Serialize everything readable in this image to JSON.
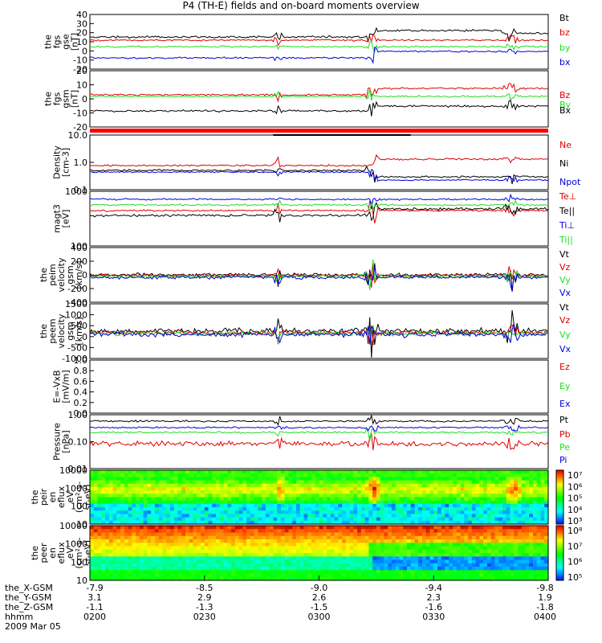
{
  "title": "P4 (TH-E) fields and on-board moments overview",
  "colors": {
    "black": "#000000",
    "red": "#e00000",
    "green": "#22dd22",
    "blue": "#0000dd"
  },
  "chart_data": [
    {
      "type": "line",
      "panel": "fgs_gse",
      "ylabel": [
        "the",
        "fgs",
        "gse",
        "[nT]"
      ],
      "yticks": [
        "40",
        "30",
        "20",
        "10",
        "0",
        "-10",
        "-20"
      ],
      "series": [
        {
          "name": "Bt",
          "color": "black"
        },
        {
          "name": "bz",
          "color": "red"
        },
        {
          "name": "by",
          "color": "green"
        },
        {
          "name": "bx",
          "color": "blue"
        }
      ]
    },
    {
      "type": "line",
      "panel": "fgs_gsm",
      "ylabel": [
        "the",
        "fgs",
        "gsm",
        "[nT]"
      ],
      "yticks": [
        "20",
        "10",
        "0",
        "-10",
        "-20"
      ],
      "series": [
        {
          "name": "Bz",
          "color": "red"
        },
        {
          "name": "By",
          "color": "green"
        },
        {
          "name": "Bx",
          "color": "black"
        }
      ]
    },
    {
      "type": "line",
      "panel": "density",
      "ylabel": [
        "Density",
        "[cm-3]"
      ],
      "yticks": [
        "10.0",
        "1.0",
        "0.1"
      ],
      "series": [
        {
          "name": "Ne",
          "color": "red"
        },
        {
          "name": "Ni",
          "color": "black"
        },
        {
          "name": "Npot",
          "color": "blue"
        }
      ]
    },
    {
      "type": "line",
      "panel": "temperature",
      "ylabel": [
        "magt3",
        "[eV]"
      ],
      "yticks": [
        "1000",
        "100"
      ],
      "series": [
        {
          "name": "Te⊥",
          "color": "red"
        },
        {
          "name": "Te||",
          "color": "black"
        },
        {
          "name": "Ti⊥",
          "color": "blue"
        },
        {
          "name": "Ti||",
          "color": "green"
        }
      ]
    },
    {
      "type": "line",
      "panel": "peim_velocity",
      "ylabel": [
        "the",
        "peim",
        "velocity",
        "gsm",
        "[km/s]"
      ],
      "yticks": [
        "400",
        "200",
        "0",
        "-200",
        "-400"
      ],
      "series": [
        {
          "name": "Vt",
          "color": "black"
        },
        {
          "name": "Vz",
          "color": "red"
        },
        {
          "name": "Vy",
          "color": "green"
        },
        {
          "name": "Vx",
          "color": "blue"
        }
      ]
    },
    {
      "type": "line",
      "panel": "peem_velocity",
      "ylabel": [
        "the",
        "peem",
        "velocity",
        "gsm",
        "[km/s]"
      ],
      "yticks": [
        "1500",
        "1000",
        "500",
        "0",
        "-500",
        "-1000"
      ],
      "series": [
        {
          "name": "Vt",
          "color": "black"
        },
        {
          "name": "Vz",
          "color": "red"
        },
        {
          "name": "Vy",
          "color": "green"
        },
        {
          "name": "Vx",
          "color": "blue"
        }
      ]
    },
    {
      "type": "line",
      "panel": "efield",
      "ylabel": [
        "E=-VxB",
        "[mV/m]"
      ],
      "yticks": [
        "1.0",
        "0.8",
        "0.6",
        "0.4",
        "0.2",
        "0.0"
      ],
      "series": [
        {
          "name": "Ez",
          "color": "red"
        },
        {
          "name": "Ey",
          "color": "green"
        },
        {
          "name": "Ex",
          "color": "blue"
        }
      ]
    },
    {
      "type": "line",
      "panel": "pressure",
      "ylabel": [
        "Pressure",
        "[nPa]"
      ],
      "yticks": [
        "1.00",
        "0.10",
        "0.01"
      ],
      "series": [
        {
          "name": "Pt",
          "color": "black"
        },
        {
          "name": "Pb",
          "color": "red"
        },
        {
          "name": "Pe",
          "color": "green"
        },
        {
          "name": "Pi",
          "color": "blue"
        }
      ]
    },
    {
      "type": "heatmap",
      "panel": "peir_spectrogram",
      "ylabel": [
        "the",
        "peir",
        "en",
        "eflux",
        "eV",
        "(cm²-s-",
        "sr-eV)"
      ],
      "yticks": [
        "10000",
        "1000",
        "100",
        "10"
      ],
      "colorbar": [
        "10⁷",
        "10⁶",
        "10⁵",
        "10⁴",
        "10³"
      ]
    },
    {
      "type": "heatmap",
      "panel": "peer_spectrogram",
      "ylabel": [
        "the",
        "peer",
        "en",
        "eflux",
        "eV",
        "(cm²-s-",
        "sr-eV)"
      ],
      "yticks": [
        "10000",
        "1000",
        "100",
        "10"
      ],
      "colorbar": [
        "10⁸",
        "10⁷",
        "10⁶",
        "10⁵"
      ]
    }
  ],
  "x_axis": {
    "rows": [
      {
        "label": "the_X-GSM",
        "values": [
          "-7.9",
          "-8.5",
          "-9.0",
          "-9.4",
          "-9.8"
        ]
      },
      {
        "label": "the_Y-GSM",
        "values": [
          "3.1",
          "2.9",
          "2.6",
          "2.3",
          "1.9"
        ]
      },
      {
        "label": "the_Z-GSM",
        "values": [
          "-1.1",
          "-1.3",
          "-1.5",
          "-1.6",
          "-1.8"
        ]
      },
      {
        "label": "hhmm",
        "values": [
          "0200",
          "0230",
          "0300",
          "0330",
          "0400"
        ]
      }
    ],
    "date": "2009 Mar 05"
  }
}
